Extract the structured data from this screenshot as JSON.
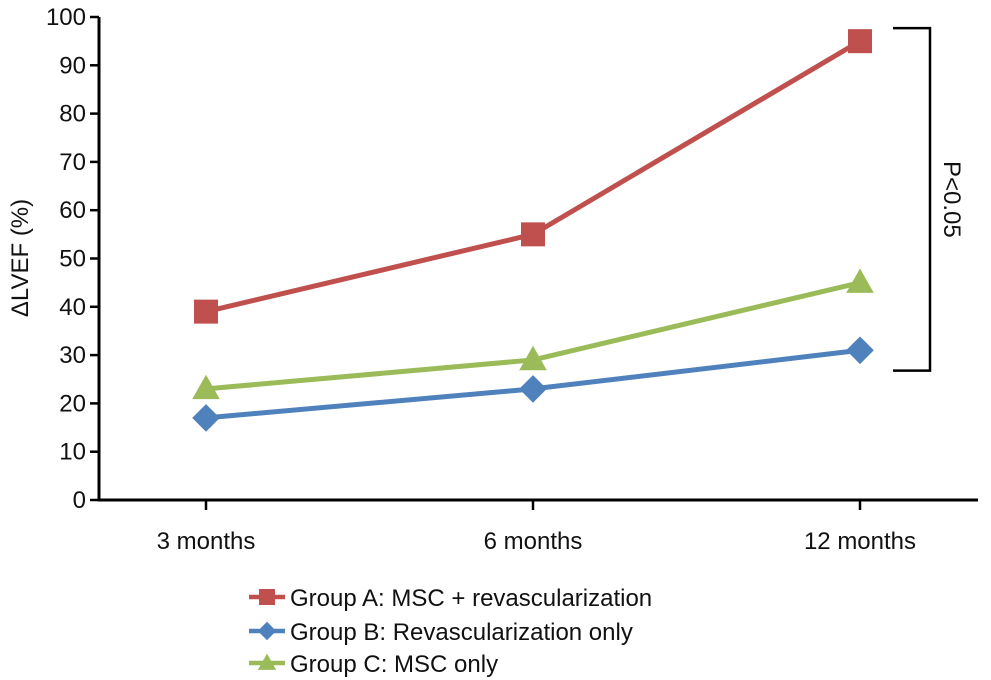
{
  "chart_data": {
    "type": "line",
    "categories": [
      "3 months",
      "6 months",
      "12 months"
    ],
    "ylabel": "ΔLVEF (%)",
    "ylim": [
      0,
      100
    ],
    "yticks": [
      0,
      10,
      20,
      30,
      40,
      50,
      60,
      70,
      80,
      90,
      100
    ],
    "grid": false,
    "legend_position": "bottom",
    "series": [
      {
        "name": "Group A: MSC + revascularization",
        "values": [
          39,
          55,
          95
        ],
        "color": "#c0504d",
        "marker": "square"
      },
      {
        "name": "Group B: Revascularization only",
        "values": [
          17,
          23,
          31
        ],
        "color": "#4f81bd",
        "marker": "diamond"
      },
      {
        "name": "Group C: MSC only",
        "values": [
          23,
          29,
          45
        ],
        "color": "#9bbb59",
        "marker": "triangle"
      }
    ],
    "annotation": {
      "text": "P<0.05",
      "from": 95,
      "to": 27
    }
  }
}
